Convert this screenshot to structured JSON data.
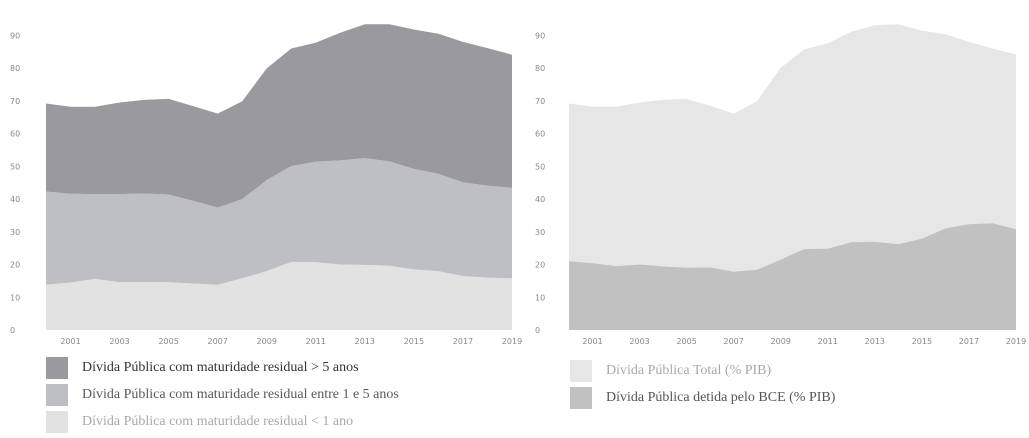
{
  "chart_data": [
    {
      "type": "area",
      "stacked": true,
      "x": [
        2000,
        2001,
        2002,
        2003,
        2004,
        2005,
        2006,
        2007,
        2008,
        2009,
        2010,
        2011,
        2012,
        2013,
        2014,
        2015,
        2016,
        2017,
        2018,
        2019
      ],
      "x_tick_labels": [
        "2001",
        "2003",
        "2005",
        "2007",
        "2009",
        "2011",
        "2013",
        "2015",
        "2017",
        "2019"
      ],
      "ylim": [
        0,
        95
      ],
      "y_ticks": [
        0,
        10,
        20,
        30,
        40,
        50,
        60,
        70,
        80,
        90
      ],
      "series": [
        {
          "name": "Dívida Pública com maturidade residual < 1 ano",
          "color": "#e2e2e2",
          "values": [
            13.8,
            14.5,
            15.6,
            14.6,
            14.6,
            14.6,
            14.2,
            13.8,
            15.8,
            18.0,
            20.8,
            20.7,
            20.0,
            19.9,
            19.6,
            18.5,
            18.0,
            16.5,
            16.0,
            15.8
          ]
        },
        {
          "name": "Dívida Pública com maturidade residual entre 1 e 5 anos",
          "color": "#bdbfc5",
          "values": [
            28.5,
            27.1,
            25.9,
            26.9,
            27.1,
            26.8,
            25.3,
            23.6,
            24.2,
            27.8,
            29.3,
            30.7,
            31.8,
            32.6,
            31.9,
            30.7,
            29.7,
            28.6,
            28.1,
            27.6
          ]
        },
        {
          "name": "Dívida Pública com maturidade residual  > 5 anos",
          "color": "#9a999d",
          "values": [
            26.9,
            26.6,
            26.7,
            28.0,
            28.6,
            29.2,
            28.9,
            28.7,
            29.9,
            34.1,
            35.9,
            36.4,
            39.0,
            40.9,
            41.9,
            42.6,
            42.8,
            42.9,
            42.0,
            40.7
          ]
        }
      ],
      "legend_placement": "bottom-left",
      "grid": false
    },
    {
      "type": "area",
      "stacked": false,
      "x": [
        2000,
        2001,
        2002,
        2003,
        2004,
        2005,
        2006,
        2007,
        2008,
        2009,
        2010,
        2011,
        2012,
        2013,
        2014,
        2015,
        2016,
        2017,
        2018,
        2019
      ],
      "x_tick_labels": [
        "2001",
        "2003",
        "2005",
        "2007",
        "2009",
        "2011",
        "2013",
        "2015",
        "2017",
        "2019"
      ],
      "ylim": [
        0,
        95
      ],
      "y_ticks": [
        0,
        10,
        20,
        30,
        40,
        50,
        60,
        70,
        80,
        90
      ],
      "series": [
        {
          "name": "Dívida Pública Total (% PIB)",
          "color": "#e6e6e6",
          "values": [
            69.2,
            68.2,
            68.2,
            69.5,
            70.3,
            70.6,
            68.5,
            66.1,
            69.9,
            80.1,
            85.7,
            87.6,
            91.1,
            93.1,
            93.4,
            91.4,
            90.4,
            88.0,
            86.0,
            84.2
          ]
        },
        {
          "name": "Dívida Pública detida pelo BCE (% PIB)",
          "color": "#c1c1c1",
          "values": [
            21.0,
            20.4,
            19.5,
            20.0,
            19.4,
            19.0,
            19.1,
            17.8,
            18.4,
            21.5,
            24.7,
            24.8,
            26.8,
            26.9,
            26.2,
            27.9,
            31.0,
            32.3,
            32.6,
            30.8
          ]
        }
      ],
      "legend_placement": "bottom",
      "grid": false
    }
  ],
  "legend_left": [
    {
      "label": "Dívida Pública com maturidade residual  > 5 anos",
      "color": "#9a999d",
      "text_color": "#333333"
    },
    {
      "label": "Dívida Pública com maturidade residual entre 1 e 5 anos",
      "color": "#bdbfc5",
      "text_color": "#5a5a5a"
    },
    {
      "label": "Dívida Pública com maturidade residual < 1 ano",
      "color": "#e2e2e2",
      "text_color": "#a8a8a8"
    }
  ],
  "legend_right": [
    {
      "label": "Dívida Pública Total (% PIB)",
      "color": "#e6e6e6",
      "text_color": "#a8a8a8"
    },
    {
      "label": "Dívida Pública detida pelo BCE (% PIB)",
      "color": "#c1c1c1",
      "text_color": "#555555"
    }
  ]
}
